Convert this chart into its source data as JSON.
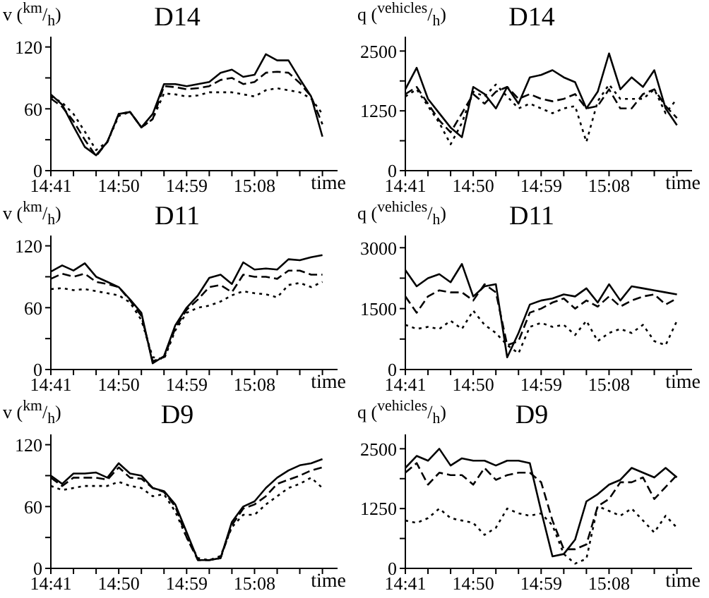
{
  "chart_data": [
    {
      "type": "line",
      "title": "D14",
      "ylabel": "v ($^{km}$/$_{h}$)",
      "xlabel": "time",
      "x": [
        14.6833,
        14.7083,
        14.7333,
        14.7583,
        14.7833,
        14.8083,
        14.8333,
        14.8583,
        14.8833,
        14.9083,
        14.9333,
        14.9583,
        14.9833,
        15.0083,
        15.0333,
        15.0583,
        15.0833,
        15.1083,
        15.1333,
        15.1583,
        15.1833,
        15.2083,
        15.2333,
        15.2583,
        15.2833
      ],
      "xlim": [
        14.6833,
        15.3167
      ],
      "xticks": [
        {
          "value": 14.6833,
          "label": "14:41"
        },
        {
          "value": 14.7333,
          "label": null
        },
        {
          "value": 14.7833,
          "label": null
        },
        {
          "value": 14.8333,
          "label": "14:50"
        },
        {
          "value": 14.8833,
          "label": null
        },
        {
          "value": 14.9333,
          "label": null
        },
        {
          "value": 14.9833,
          "label": "14:59"
        },
        {
          "value": 15.0333,
          "label": null
        },
        {
          "value": 15.0833,
          "label": null
        },
        {
          "value": 15.1333,
          "label": "15:08"
        },
        {
          "value": 15.1833,
          "label": null
        },
        {
          "value": 15.2333,
          "label": null
        },
        {
          "value": 15.2833,
          "label": null
        }
      ],
      "ylim": [
        0,
        130
      ],
      "yticks": [
        0,
        {
          "value": 30,
          "label": null
        },
        60,
        {
          "value": 90,
          "label": null
        },
        120
      ],
      "series": [
        {
          "color": "#000000",
          "line_style": "solid",
          "values": [
            74,
            64,
            43,
            23,
            15,
            28,
            55,
            57,
            42,
            55,
            84,
            84,
            82,
            84,
            86,
            95,
            98,
            91,
            93,
            113,
            107,
            107,
            89,
            72,
            33
          ]
        },
        {
          "color": "#000000",
          "line_style": "dashed",
          "values": [
            70,
            62,
            48,
            30,
            14,
            28,
            55,
            57,
            42,
            50,
            82,
            81,
            79,
            80,
            82,
            88,
            90,
            84,
            86,
            95,
            96,
            95,
            85,
            72,
            45
          ]
        },
        {
          "color": "#000000",
          "line_style": "dotted",
          "values": [
            72,
            66,
            55,
            38,
            20,
            28,
            53,
            57,
            42,
            50,
            75,
            74,
            72,
            73,
            76,
            76,
            76,
            74,
            72,
            78,
            80,
            78,
            76,
            70,
            55
          ]
        }
      ]
    },
    {
      "type": "line",
      "title": "D14",
      "ylabel": "q ($^{vehicles}$/$_{h}$)",
      "xlabel": "time",
      "x": [
        14.6833,
        14.7083,
        14.7333,
        14.7583,
        14.7833,
        14.8083,
        14.8333,
        14.8583,
        14.8833,
        14.9083,
        14.9333,
        14.9583,
        14.9833,
        15.0083,
        15.0333,
        15.0583,
        15.0833,
        15.1083,
        15.1333,
        15.1583,
        15.1833,
        15.2083,
        15.2333,
        15.2583,
        15.2833
      ],
      "xlim": [
        14.6833,
        15.3167
      ],
      "xticks": [
        {
          "value": 14.6833,
          "label": "14:41"
        },
        {
          "value": 14.7333,
          "label": null
        },
        {
          "value": 14.7833,
          "label": null
        },
        {
          "value": 14.8333,
          "label": "14:50"
        },
        {
          "value": 14.8833,
          "label": null
        },
        {
          "value": 14.9333,
          "label": null
        },
        {
          "value": 14.9833,
          "label": "14:59"
        },
        {
          "value": 15.0333,
          "label": null
        },
        {
          "value": 15.0833,
          "label": null
        },
        {
          "value": 15.1333,
          "label": "15:08"
        },
        {
          "value": 15.1833,
          "label": null
        },
        {
          "value": 15.2333,
          "label": null
        },
        {
          "value": 15.2833,
          "label": null
        }
      ],
      "ylim": [
        0,
        2800
      ],
      "yticks": [
        0,
        {
          "value": 625,
          "label": null
        },
        1250,
        {
          "value": 1875,
          "label": null
        },
        2500
      ],
      "series": [
        {
          "color": "#000000",
          "line_style": "solid",
          "values": [
            1700,
            2150,
            1500,
            1200,
            900,
            700,
            1750,
            1600,
            1300,
            1750,
            1400,
            1950,
            2000,
            2100,
            1950,
            1850,
            1300,
            1650,
            2450,
            1700,
            1950,
            1750,
            2100,
            1300,
            950
          ]
        },
        {
          "color": "#000000",
          "line_style": "dashed",
          "values": [
            1600,
            1750,
            1400,
            1050,
            800,
            1200,
            1600,
            1400,
            1650,
            1750,
            1500,
            1600,
            1500,
            1450,
            1500,
            1600,
            1300,
            1350,
            1700,
            1300,
            1300,
            1600,
            1700,
            1350,
            1100
          ]
        },
        {
          "color": "#000000",
          "line_style": "dotted",
          "values": [
            1550,
            1700,
            1350,
            1000,
            550,
            1000,
            1650,
            1550,
            1800,
            1550,
            1300,
            1400,
            1300,
            1200,
            1300,
            1350,
            600,
            1450,
            1800,
            1500,
            1500,
            1500,
            1700,
            1200,
            1500
          ]
        }
      ]
    },
    {
      "type": "line",
      "title": "D11",
      "ylabel": "v ($^{km}$/$_{h}$)",
      "xlabel": "time",
      "x": [
        14.6833,
        14.7083,
        14.7333,
        14.7583,
        14.7833,
        14.8083,
        14.8333,
        14.8583,
        14.8833,
        14.9083,
        14.9333,
        14.9583,
        14.9833,
        15.0083,
        15.0333,
        15.0583,
        15.0833,
        15.1083,
        15.1333,
        15.1583,
        15.1833,
        15.2083,
        15.2333,
        15.2583,
        15.2833
      ],
      "xlim": [
        14.6833,
        15.3167
      ],
      "xticks": [
        {
          "value": 14.6833,
          "label": "14:41"
        },
        {
          "value": 14.7333,
          "label": null
        },
        {
          "value": 14.7833,
          "label": null
        },
        {
          "value": 14.8333,
          "label": "14:50"
        },
        {
          "value": 14.8833,
          "label": null
        },
        {
          "value": 14.9333,
          "label": null
        },
        {
          "value": 14.9833,
          "label": "14:59"
        },
        {
          "value": 15.0333,
          "label": null
        },
        {
          "value": 15.0833,
          "label": null
        },
        {
          "value": 15.1333,
          "label": "15:08"
        },
        {
          "value": 15.1833,
          "label": null
        },
        {
          "value": 15.2333,
          "label": null
        },
        {
          "value": 15.2833,
          "label": null
        }
      ],
      "ylim": [
        0,
        130
      ],
      "yticks": [
        0,
        {
          "value": 30,
          "label": null
        },
        60,
        {
          "value": 90,
          "label": null
        },
        120
      ],
      "series": [
        {
          "color": "#000000",
          "line_style": "solid",
          "values": [
            95,
            101,
            96,
            103,
            90,
            85,
            80,
            68,
            55,
            6,
            13,
            43,
            60,
            72,
            89,
            92,
            83,
            104,
            97,
            98,
            97,
            107,
            106,
            109,
            111
          ]
        },
        {
          "color": "#000000",
          "line_style": "dashed",
          "values": [
            88,
            93,
            90,
            93,
            85,
            83,
            80,
            67,
            52,
            8,
            12,
            40,
            58,
            68,
            80,
            82,
            75,
            92,
            90,
            90,
            88,
            96,
            96,
            92,
            92
          ]
        },
        {
          "color": "#000000",
          "line_style": "dotted",
          "values": [
            78,
            79,
            77,
            78,
            76,
            74,
            72,
            65,
            48,
            12,
            10,
            38,
            55,
            60,
            62,
            66,
            72,
            76,
            74,
            73,
            70,
            82,
            84,
            80,
            85
          ]
        }
      ]
    },
    {
      "type": "line",
      "title": "D11",
      "ylabel": "q ($^{vehicles}$/$_{h}$)",
      "xlabel": "time",
      "x": [
        14.6833,
        14.7083,
        14.7333,
        14.7583,
        14.7833,
        14.8083,
        14.8333,
        14.8583,
        14.8833,
        14.9083,
        14.9333,
        14.9583,
        14.9833,
        15.0083,
        15.0333,
        15.0583,
        15.0833,
        15.1083,
        15.1333,
        15.1583,
        15.1833,
        15.2083,
        15.2333,
        15.2583,
        15.2833
      ],
      "xlim": [
        14.6833,
        15.3167
      ],
      "xticks": [
        {
          "value": 14.6833,
          "label": "14:41"
        },
        {
          "value": 14.7333,
          "label": null
        },
        {
          "value": 14.7833,
          "label": null
        },
        {
          "value": 14.8333,
          "label": "14:50"
        },
        {
          "value": 14.8833,
          "label": null
        },
        {
          "value": 14.9333,
          "label": null
        },
        {
          "value": 14.9833,
          "label": "14:59"
        },
        {
          "value": 15.0333,
          "label": null
        },
        {
          "value": 15.0833,
          "label": null
        },
        {
          "value": 15.1333,
          "label": "15:08"
        },
        {
          "value": 15.1833,
          "label": null
        },
        {
          "value": 15.2333,
          "label": null
        },
        {
          "value": 15.2833,
          "label": null
        }
      ],
      "ylim": [
        0,
        3300
      ],
      "yticks": [
        0,
        {
          "value": 750,
          "label": null
        },
        1500,
        {
          "value": 2250,
          "label": null
        },
        3000
      ],
      "series": [
        {
          "color": "#000000",
          "line_style": "solid",
          "values": [
            2450,
            2050,
            2250,
            2350,
            2150,
            2600,
            1800,
            2050,
            2100,
            300,
            900,
            1600,
            1700,
            1750,
            1850,
            1800,
            2000,
            1650,
            2100,
            1700,
            2050,
            2000,
            1950,
            1900,
            1850
          ]
        },
        {
          "color": "#000000",
          "line_style": "dashed",
          "values": [
            1800,
            1400,
            1800,
            1950,
            1900,
            1900,
            1700,
            2100,
            1900,
            600,
            700,
            1400,
            1500,
            1650,
            1750,
            1500,
            1700,
            1550,
            1800,
            1550,
            1700,
            1800,
            1850,
            1600,
            1750
          ]
        },
        {
          "color": "#000000",
          "line_style": "dotted",
          "values": [
            1100,
            1000,
            1050,
            1000,
            1200,
            1000,
            1450,
            1100,
            900,
            600,
            400,
            1050,
            1150,
            1050,
            1100,
            850,
            1200,
            700,
            900,
            1000,
            900,
            1100,
            700,
            600,
            1200
          ]
        }
      ]
    },
    {
      "type": "line",
      "title": "D9",
      "ylabel": "v ($^{km}$/$_{h}$)",
      "xlabel": "time",
      "x": [
        14.6833,
        14.7083,
        14.7333,
        14.7583,
        14.7833,
        14.8083,
        14.8333,
        14.8583,
        14.8833,
        14.9083,
        14.9333,
        14.9583,
        14.9833,
        15.0083,
        15.0333,
        15.0583,
        15.0833,
        15.1083,
        15.1333,
        15.1583,
        15.1833,
        15.2083,
        15.2333,
        15.2583,
        15.2833
      ],
      "xlim": [
        14.6833,
        15.3167
      ],
      "xticks": [
        {
          "value": 14.6833,
          "label": "14:41"
        },
        {
          "value": 14.7333,
          "label": null
        },
        {
          "value": 14.7833,
          "label": null
        },
        {
          "value": 14.8333,
          "label": "14:50"
        },
        {
          "value": 14.8833,
          "label": null
        },
        {
          "value": 14.9333,
          "label": null
        },
        {
          "value": 14.9833,
          "label": "14:59"
        },
        {
          "value": 15.0333,
          "label": null
        },
        {
          "value": 15.0833,
          "label": null
        },
        {
          "value": 15.1333,
          "label": "15:08"
        },
        {
          "value": 15.1833,
          "label": null
        },
        {
          "value": 15.2333,
          "label": null
        },
        {
          "value": 15.2833,
          "label": null
        }
      ],
      "ylim": [
        0,
        130
      ],
      "yticks": [
        0,
        {
          "value": 30,
          "label": null
        },
        60,
        {
          "value": 90,
          "label": null
        },
        120
      ],
      "series": [
        {
          "color": "#000000",
          "line_style": "solid",
          "values": [
            90,
            82,
            92,
            92,
            93,
            88,
            102,
            92,
            90,
            78,
            75,
            62,
            35,
            8,
            8,
            10,
            45,
            60,
            65,
            78,
            88,
            95,
            100,
            102,
            106
          ]
        },
        {
          "color": "#000000",
          "line_style": "dashed",
          "values": [
            88,
            80,
            88,
            88,
            88,
            86,
            98,
            88,
            87,
            78,
            74,
            60,
            30,
            8,
            8,
            10,
            42,
            58,
            62,
            70,
            82,
            86,
            90,
            95,
            98
          ]
        },
        {
          "color": "#000000",
          "line_style": "dotted",
          "values": [
            80,
            76,
            78,
            80,
            80,
            80,
            84,
            80,
            78,
            70,
            72,
            55,
            30,
            10,
            8,
            12,
            40,
            52,
            52,
            62,
            70,
            78,
            82,
            88,
            78
          ]
        }
      ]
    },
    {
      "type": "line",
      "title": "D9",
      "ylabel": "q ($^{vehicles}$/$_{h}$)",
      "xlabel": "time",
      "x": [
        14.6833,
        14.7083,
        14.7333,
        14.7583,
        14.7833,
        14.8083,
        14.8333,
        14.8583,
        14.8833,
        14.9083,
        14.9333,
        14.9583,
        14.9833,
        15.0083,
        15.0333,
        15.0583,
        15.0833,
        15.1083,
        15.1333,
        15.1583,
        15.1833,
        15.2083,
        15.2333,
        15.2583,
        15.2833
      ],
      "xlim": [
        14.6833,
        15.3167
      ],
      "xticks": [
        {
          "value": 14.6833,
          "label": "14:41"
        },
        {
          "value": 14.7333,
          "label": null
        },
        {
          "value": 14.7833,
          "label": null
        },
        {
          "value": 14.8333,
          "label": "14:50"
        },
        {
          "value": 14.8833,
          "label": null
        },
        {
          "value": 14.9333,
          "label": null
        },
        {
          "value": 14.9833,
          "label": "14:59"
        },
        {
          "value": 15.0333,
          "label": null
        },
        {
          "value": 15.0833,
          "label": null
        },
        {
          "value": 15.1333,
          "label": "15:08"
        },
        {
          "value": 15.1833,
          "label": null
        },
        {
          "value": 15.2333,
          "label": null
        },
        {
          "value": 15.2833,
          "label": null
        }
      ],
      "ylim": [
        0,
        2800
      ],
      "yticks": [
        0,
        {
          "value": 625,
          "label": null
        },
        1250,
        {
          "value": 1875,
          "label": null
        },
        2500
      ],
      "series": [
        {
          "color": "#000000",
          "line_style": "solid",
          "values": [
            2100,
            2350,
            2250,
            2500,
            2150,
            2300,
            2250,
            2250,
            2150,
            2250,
            2250,
            2200,
            1200,
            250,
            300,
            600,
            1400,
            1550,
            1750,
            1850,
            2100,
            2000,
            1900,
            2100,
            1900
          ]
        },
        {
          "color": "#000000",
          "line_style": "dashed",
          "values": [
            2000,
            2200,
            1750,
            2000,
            1950,
            1950,
            1750,
            2100,
            1850,
            1950,
            2000,
            2000,
            1800,
            1000,
            400,
            400,
            500,
            1300,
            1450,
            1800,
            1800,
            1900,
            1450,
            1700,
            1950
          ]
        },
        {
          "color": "#000000",
          "line_style": "dotted",
          "values": [
            1000,
            950,
            1050,
            1250,
            1050,
            1000,
            950,
            700,
            850,
            1250,
            1150,
            1100,
            1150,
            900,
            300,
            100,
            200,
            1300,
            1200,
            1100,
            1250,
            1000,
            750,
            1100,
            850
          ]
        }
      ]
    }
  ]
}
